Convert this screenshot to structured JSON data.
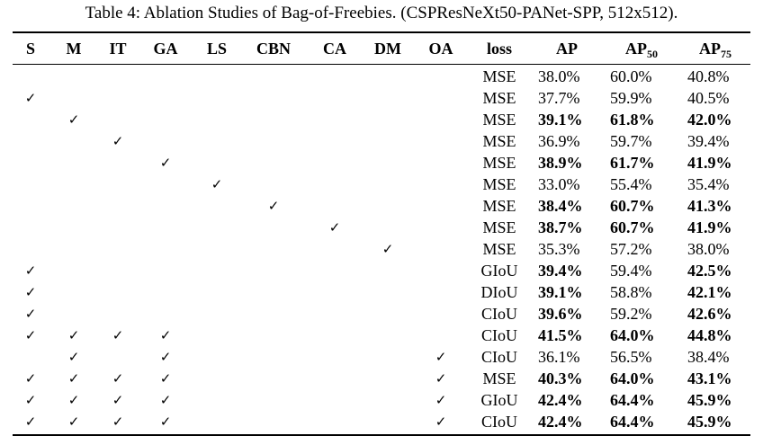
{
  "caption": "Table 4: Ablation Studies of Bag-of-Freebies. (CSPResNeXt50-PANet-SPP, 512x512).",
  "check_symbol": "✓",
  "headers": {
    "s": "S",
    "m": "M",
    "it": "IT",
    "ga": "GA",
    "ls": "LS",
    "cbn": "CBN",
    "ca": "CA",
    "dm": "DM",
    "oa": "OA",
    "loss": "loss",
    "ap": "AP",
    "ap50_base": "AP",
    "ap50_sub": "50",
    "ap75_base": "AP",
    "ap75_sub": "75"
  },
  "rows": [
    {
      "checks": [
        0,
        0,
        0,
        0,
        0,
        0,
        0,
        0,
        0
      ],
      "loss": "MSE",
      "ap": "38.0%",
      "ap50": "60.0%",
      "ap75": "40.8%",
      "bold": [
        false,
        false,
        false
      ]
    },
    {
      "checks": [
        1,
        0,
        0,
        0,
        0,
        0,
        0,
        0,
        0
      ],
      "loss": "MSE",
      "ap": "37.7%",
      "ap50": "59.9%",
      "ap75": "40.5%",
      "bold": [
        false,
        false,
        false
      ]
    },
    {
      "checks": [
        0,
        1,
        0,
        0,
        0,
        0,
        0,
        0,
        0
      ],
      "loss": "MSE",
      "ap": "39.1%",
      "ap50": "61.8%",
      "ap75": "42.0%",
      "bold": [
        true,
        true,
        true
      ]
    },
    {
      "checks": [
        0,
        0,
        1,
        0,
        0,
        0,
        0,
        0,
        0
      ],
      "loss": "MSE",
      "ap": "36.9%",
      "ap50": "59.7%",
      "ap75": "39.4%",
      "bold": [
        false,
        false,
        false
      ]
    },
    {
      "checks": [
        0,
        0,
        0,
        1,
        0,
        0,
        0,
        0,
        0
      ],
      "loss": "MSE",
      "ap": "38.9%",
      "ap50": "61.7%",
      "ap75": "41.9%",
      "bold": [
        true,
        true,
        true
      ]
    },
    {
      "checks": [
        0,
        0,
        0,
        0,
        1,
        0,
        0,
        0,
        0
      ],
      "loss": "MSE",
      "ap": "33.0%",
      "ap50": "55.4%",
      "ap75": "35.4%",
      "bold": [
        false,
        false,
        false
      ]
    },
    {
      "checks": [
        0,
        0,
        0,
        0,
        0,
        1,
        0,
        0,
        0
      ],
      "loss": "MSE",
      "ap": "38.4%",
      "ap50": "60.7%",
      "ap75": "41.3%",
      "bold": [
        true,
        true,
        true
      ]
    },
    {
      "checks": [
        0,
        0,
        0,
        0,
        0,
        0,
        1,
        0,
        0
      ],
      "loss": "MSE",
      "ap": "38.7%",
      "ap50": "60.7%",
      "ap75": "41.9%",
      "bold": [
        true,
        true,
        true
      ]
    },
    {
      "checks": [
        0,
        0,
        0,
        0,
        0,
        0,
        0,
        1,
        0
      ],
      "loss": "MSE",
      "ap": "35.3%",
      "ap50": "57.2%",
      "ap75": "38.0%",
      "bold": [
        false,
        false,
        false
      ]
    },
    {
      "checks": [
        1,
        0,
        0,
        0,
        0,
        0,
        0,
        0,
        0
      ],
      "loss": "GIoU",
      "ap": "39.4%",
      "ap50": "59.4%",
      "ap75": "42.5%",
      "bold": [
        true,
        false,
        true
      ]
    },
    {
      "checks": [
        1,
        0,
        0,
        0,
        0,
        0,
        0,
        0,
        0
      ],
      "loss": "DIoU",
      "ap": "39.1%",
      "ap50": "58.8%",
      "ap75": "42.1%",
      "bold": [
        true,
        false,
        true
      ]
    },
    {
      "checks": [
        1,
        0,
        0,
        0,
        0,
        0,
        0,
        0,
        0
      ],
      "loss": "CIoU",
      "ap": "39.6%",
      "ap50": "59.2%",
      "ap75": "42.6%",
      "bold": [
        true,
        false,
        true
      ]
    },
    {
      "checks": [
        1,
        1,
        1,
        1,
        0,
        0,
        0,
        0,
        0
      ],
      "loss": "CIoU",
      "ap": "41.5%",
      "ap50": "64.0%",
      "ap75": "44.8%",
      "bold": [
        true,
        true,
        true
      ]
    },
    {
      "checks": [
        0,
        1,
        0,
        1,
        0,
        0,
        0,
        0,
        1
      ],
      "loss": "CIoU",
      "ap": "36.1%",
      "ap50": "56.5%",
      "ap75": "38.4%",
      "bold": [
        false,
        false,
        false
      ]
    },
    {
      "checks": [
        1,
        1,
        1,
        1,
        0,
        0,
        0,
        0,
        1
      ],
      "loss": "MSE",
      "ap": "40.3%",
      "ap50": "64.0%",
      "ap75": "43.1%",
      "bold": [
        true,
        true,
        true
      ]
    },
    {
      "checks": [
        1,
        1,
        1,
        1,
        0,
        0,
        0,
        0,
        1
      ],
      "loss": "GIoU",
      "ap": "42.4%",
      "ap50": "64.4%",
      "ap75": "45.9%",
      "bold": [
        true,
        true,
        true
      ]
    },
    {
      "checks": [
        1,
        1,
        1,
        1,
        0,
        0,
        0,
        0,
        1
      ],
      "loss": "CIoU",
      "ap": "42.4%",
      "ap50": "64.4%",
      "ap75": "45.9%",
      "bold": [
        true,
        true,
        true
      ]
    }
  ]
}
